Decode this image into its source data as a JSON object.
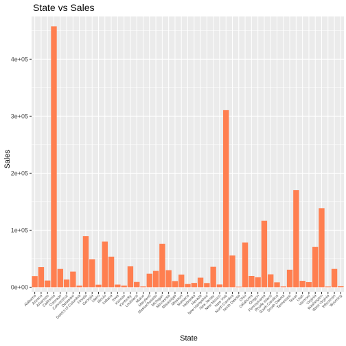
{
  "chart_data": {
    "type": "bar",
    "title": "State vs Sales",
    "xlabel": "State",
    "ylabel": "Sales",
    "ylim": [
      -8000,
      475000
    ],
    "yticks": [
      0,
      100000,
      200000,
      300000,
      400000
    ],
    "ytick_labels": [
      "0e+00",
      "1e+05",
      "2e+05",
      "3e+05",
      "4e+05"
    ],
    "bar_color": "#ff7f50",
    "panel_color": "#ebebeb",
    "grid": true,
    "legend": "none",
    "categories": [
      "Alabama",
      "Arizona",
      "Arkansas",
      "California",
      "Colorado",
      "Connecticut",
      "Delaware",
      "District of Columbia",
      "Florida",
      "Georgia",
      "Idaho",
      "Illinois",
      "Indiana",
      "Iowa",
      "Kansas",
      "Kentucky",
      "Louisiana",
      "Maine",
      "Maryland",
      "Massachusetts",
      "Michigan",
      "Minnesota",
      "Mississippi",
      "Missouri",
      "Montana",
      "Nebraska",
      "Nevada",
      "New Hampshire",
      "New Jersey",
      "New Mexico",
      "New York",
      "North Carolina",
      "North Dakota",
      "Ohio",
      "Oklahoma",
      "Oregon",
      "Pennsylvania",
      "Rhode Island",
      "South Carolina",
      "South Dakota",
      "Tennessee",
      "Texas",
      "Utah",
      "Vermont",
      "Virginia",
      "Washington",
      "West Virginia",
      "Wisconsin",
      "Wyoming"
    ],
    "values": [
      19500,
      35300,
      11700,
      457700,
      32100,
      13400,
      27400,
      2900,
      89500,
      49100,
      4400,
      80200,
      53600,
      4600,
      2900,
      36600,
      9200,
      1300,
      23700,
      28600,
      76300,
      29900,
      10800,
      22200,
      5600,
      7500,
      16700,
      7300,
      35800,
      4800,
      310900,
      55600,
      900,
      78300,
      19700,
      17400,
      116500,
      22600,
      8500,
      1300,
      30700,
      170200,
      11200,
      8900,
      70600,
      138600,
      1200,
      32100,
      1600
    ]
  }
}
